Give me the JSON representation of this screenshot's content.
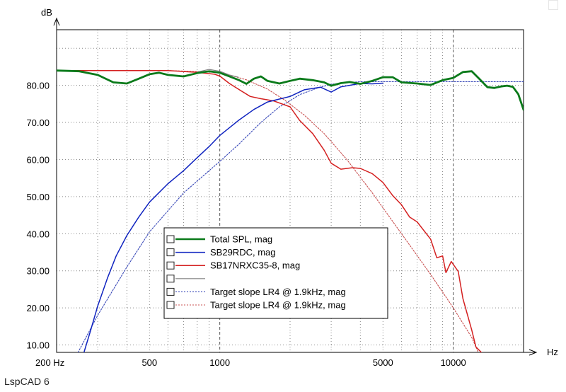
{
  "app_footer": "LspCAD 6",
  "chart_data": {
    "type": "line",
    "title": "",
    "xlabel": "Hz",
    "ylabel": "dB",
    "xscale": "log",
    "xlim": [
      200,
      20000
    ],
    "ylim": [
      8,
      95
    ],
    "grid": true,
    "legend_position": "bottom-center",
    "x_tick_labels": [
      {
        "value": 200,
        "label": "200 Hz"
      },
      {
        "value": 500,
        "label": "500"
      },
      {
        "value": 1000,
        "label": "1000"
      },
      {
        "value": 5000,
        "label": "5000"
      },
      {
        "value": 10000,
        "label": "10000"
      }
    ],
    "y_tick_labels": [
      {
        "value": 10,
        "label": "10.00"
      },
      {
        "value": 20,
        "label": "20.00"
      },
      {
        "value": 30,
        "label": "30.00"
      },
      {
        "value": 40,
        "label": "40.00"
      },
      {
        "value": 50,
        "label": "50.00"
      },
      {
        "value": 60,
        "label": "60.00"
      },
      {
        "value": 70,
        "label": "70.00"
      },
      {
        "value": 80,
        "label": "80.00"
      }
    ],
    "series": [
      {
        "name": "Total SPL, mag",
        "color": "#0a7a1a",
        "style": "solid",
        "width": 2.8,
        "points": [
          [
            200,
            84
          ],
          [
            250,
            83.8
          ],
          [
            300,
            82.8
          ],
          [
            350,
            80.8
          ],
          [
            400,
            80.5
          ],
          [
            450,
            81.8
          ],
          [
            500,
            83
          ],
          [
            550,
            83.4
          ],
          [
            600,
            82.8
          ],
          [
            700,
            82.4
          ],
          [
            800,
            83.3
          ],
          [
            900,
            83.8
          ],
          [
            1000,
            83.4
          ],
          [
            1100,
            82.4
          ],
          [
            1200,
            81.5
          ],
          [
            1300,
            80.4
          ],
          [
            1400,
            81.8
          ],
          [
            1500,
            82.4
          ],
          [
            1600,
            81.2
          ],
          [
            1800,
            80.5
          ],
          [
            2000,
            81.2
          ],
          [
            2200,
            81.8
          ],
          [
            2500,
            81.4
          ],
          [
            2800,
            80.8
          ],
          [
            3000,
            79.9
          ],
          [
            3300,
            80.6
          ],
          [
            3600,
            80.9
          ],
          [
            4000,
            80.4
          ],
          [
            4500,
            81.2
          ],
          [
            5000,
            82.2
          ],
          [
            5500,
            82.2
          ],
          [
            6000,
            80.8
          ],
          [
            7000,
            80.5
          ],
          [
            8000,
            80.1
          ],
          [
            9000,
            81.4
          ],
          [
            10000,
            82
          ],
          [
            11000,
            83.6
          ],
          [
            12000,
            83.8
          ],
          [
            13000,
            81.6
          ],
          [
            14000,
            79.5
          ],
          [
            15000,
            79.3
          ],
          [
            16000,
            79.7
          ],
          [
            17000,
            79.9
          ],
          [
            18000,
            79.6
          ],
          [
            19000,
            77.6
          ],
          [
            20000,
            73.4
          ]
        ]
      },
      {
        "name": "SB29RDC, mag",
        "color": "#1024c0",
        "style": "solid",
        "width": 1.5,
        "points": [
          [
            262,
            8
          ],
          [
            280,
            14
          ],
          [
            300,
            20.5
          ],
          [
            330,
            28
          ],
          [
            360,
            34
          ],
          [
            400,
            39.5
          ],
          [
            450,
            44.5
          ],
          [
            500,
            48.5
          ],
          [
            600,
            53.5
          ],
          [
            700,
            57
          ],
          [
            800,
            60.5
          ],
          [
            900,
            63.5
          ],
          [
            1000,
            66.5
          ],
          [
            1200,
            70.5
          ],
          [
            1400,
            73.5
          ],
          [
            1600,
            75.5
          ],
          [
            1800,
            76.3
          ],
          [
            2000,
            77
          ],
          [
            2300,
            78.8
          ],
          [
            2700,
            79.5
          ],
          [
            3000,
            78.2
          ],
          [
            3300,
            79.6
          ],
          [
            4000,
            80.5
          ],
          [
            4500,
            80.4
          ],
          [
            5000,
            80.6
          ]
        ]
      },
      {
        "name": "SB17NRXC35-8, mag",
        "color": "#d42020",
        "style": "solid",
        "width": 1.5,
        "points": [
          [
            200,
            84
          ],
          [
            400,
            84
          ],
          [
            600,
            84
          ],
          [
            800,
            83.5
          ],
          [
            950,
            83
          ],
          [
            1000,
            82.5
          ],
          [
            1100,
            80.5
          ],
          [
            1200,
            79
          ],
          [
            1350,
            77
          ],
          [
            1500,
            76.4
          ],
          [
            1700,
            75.8
          ],
          [
            2000,
            74.2
          ],
          [
            2200,
            70.5
          ],
          [
            2500,
            67
          ],
          [
            2800,
            62.5
          ],
          [
            3000,
            59
          ],
          [
            3300,
            57.4
          ],
          [
            3700,
            57.8
          ],
          [
            4000,
            57.6
          ],
          [
            4500,
            56.2
          ],
          [
            5000,
            53.8
          ],
          [
            5500,
            50.3
          ],
          [
            6000,
            47.8
          ],
          [
            6500,
            44.5
          ],
          [
            7000,
            43.2
          ],
          [
            8000,
            38.5
          ],
          [
            8500,
            33.5
          ],
          [
            9000,
            34
          ],
          [
            9300,
            29.5
          ],
          [
            9800,
            32.5
          ],
          [
            10500,
            29.8
          ],
          [
            11000,
            22.5
          ],
          [
            12000,
            14
          ],
          [
            12500,
            9.5
          ],
          [
            13200,
            8
          ]
        ]
      },
      {
        "name": "",
        "color": "#808080",
        "style": "solid",
        "width": 1.2,
        "points": [
          [
            800,
            83.6
          ],
          [
            900,
            84.3
          ],
          [
            1000,
            83.8
          ],
          [
            1100,
            82.8
          ],
          [
            1200,
            82.2
          ]
        ]
      },
      {
        "name": "Target slope LR4 @ 1.9kHz, mag",
        "color": "#3848b8",
        "style": "dotted",
        "width": 1.1,
        "points": [
          [
            247,
            8
          ],
          [
            300,
            18
          ],
          [
            400,
            31
          ],
          [
            500,
            40.5
          ],
          [
            700,
            51
          ],
          [
            1000,
            59.5
          ],
          [
            1200,
            64
          ],
          [
            1500,
            70
          ],
          [
            1800,
            74.2
          ],
          [
            1900,
            75
          ],
          [
            2200,
            77.5
          ],
          [
            2600,
            79.2
          ],
          [
            3000,
            80.3
          ],
          [
            4000,
            81
          ],
          [
            6000,
            81
          ],
          [
            10000,
            81
          ],
          [
            20000,
            81
          ]
        ]
      },
      {
        "name": "Target slope LR4 @ 1.9kHz, mag",
        "color": "#c85050",
        "style": "dotted",
        "width": 1.1,
        "points": [
          [
            200,
            84
          ],
          [
            600,
            84
          ],
          [
            1000,
            83.5
          ],
          [
            1300,
            81.5
          ],
          [
            1600,
            79
          ],
          [
            1900,
            76
          ],
          [
            2300,
            72
          ],
          [
            2800,
            67
          ],
          [
            3500,
            60
          ],
          [
            4500,
            51
          ],
          [
            6000,
            40
          ],
          [
            8000,
            29
          ],
          [
            10000,
            20
          ],
          [
            12000,
            12
          ],
          [
            12800,
            8
          ]
        ]
      }
    ]
  }
}
